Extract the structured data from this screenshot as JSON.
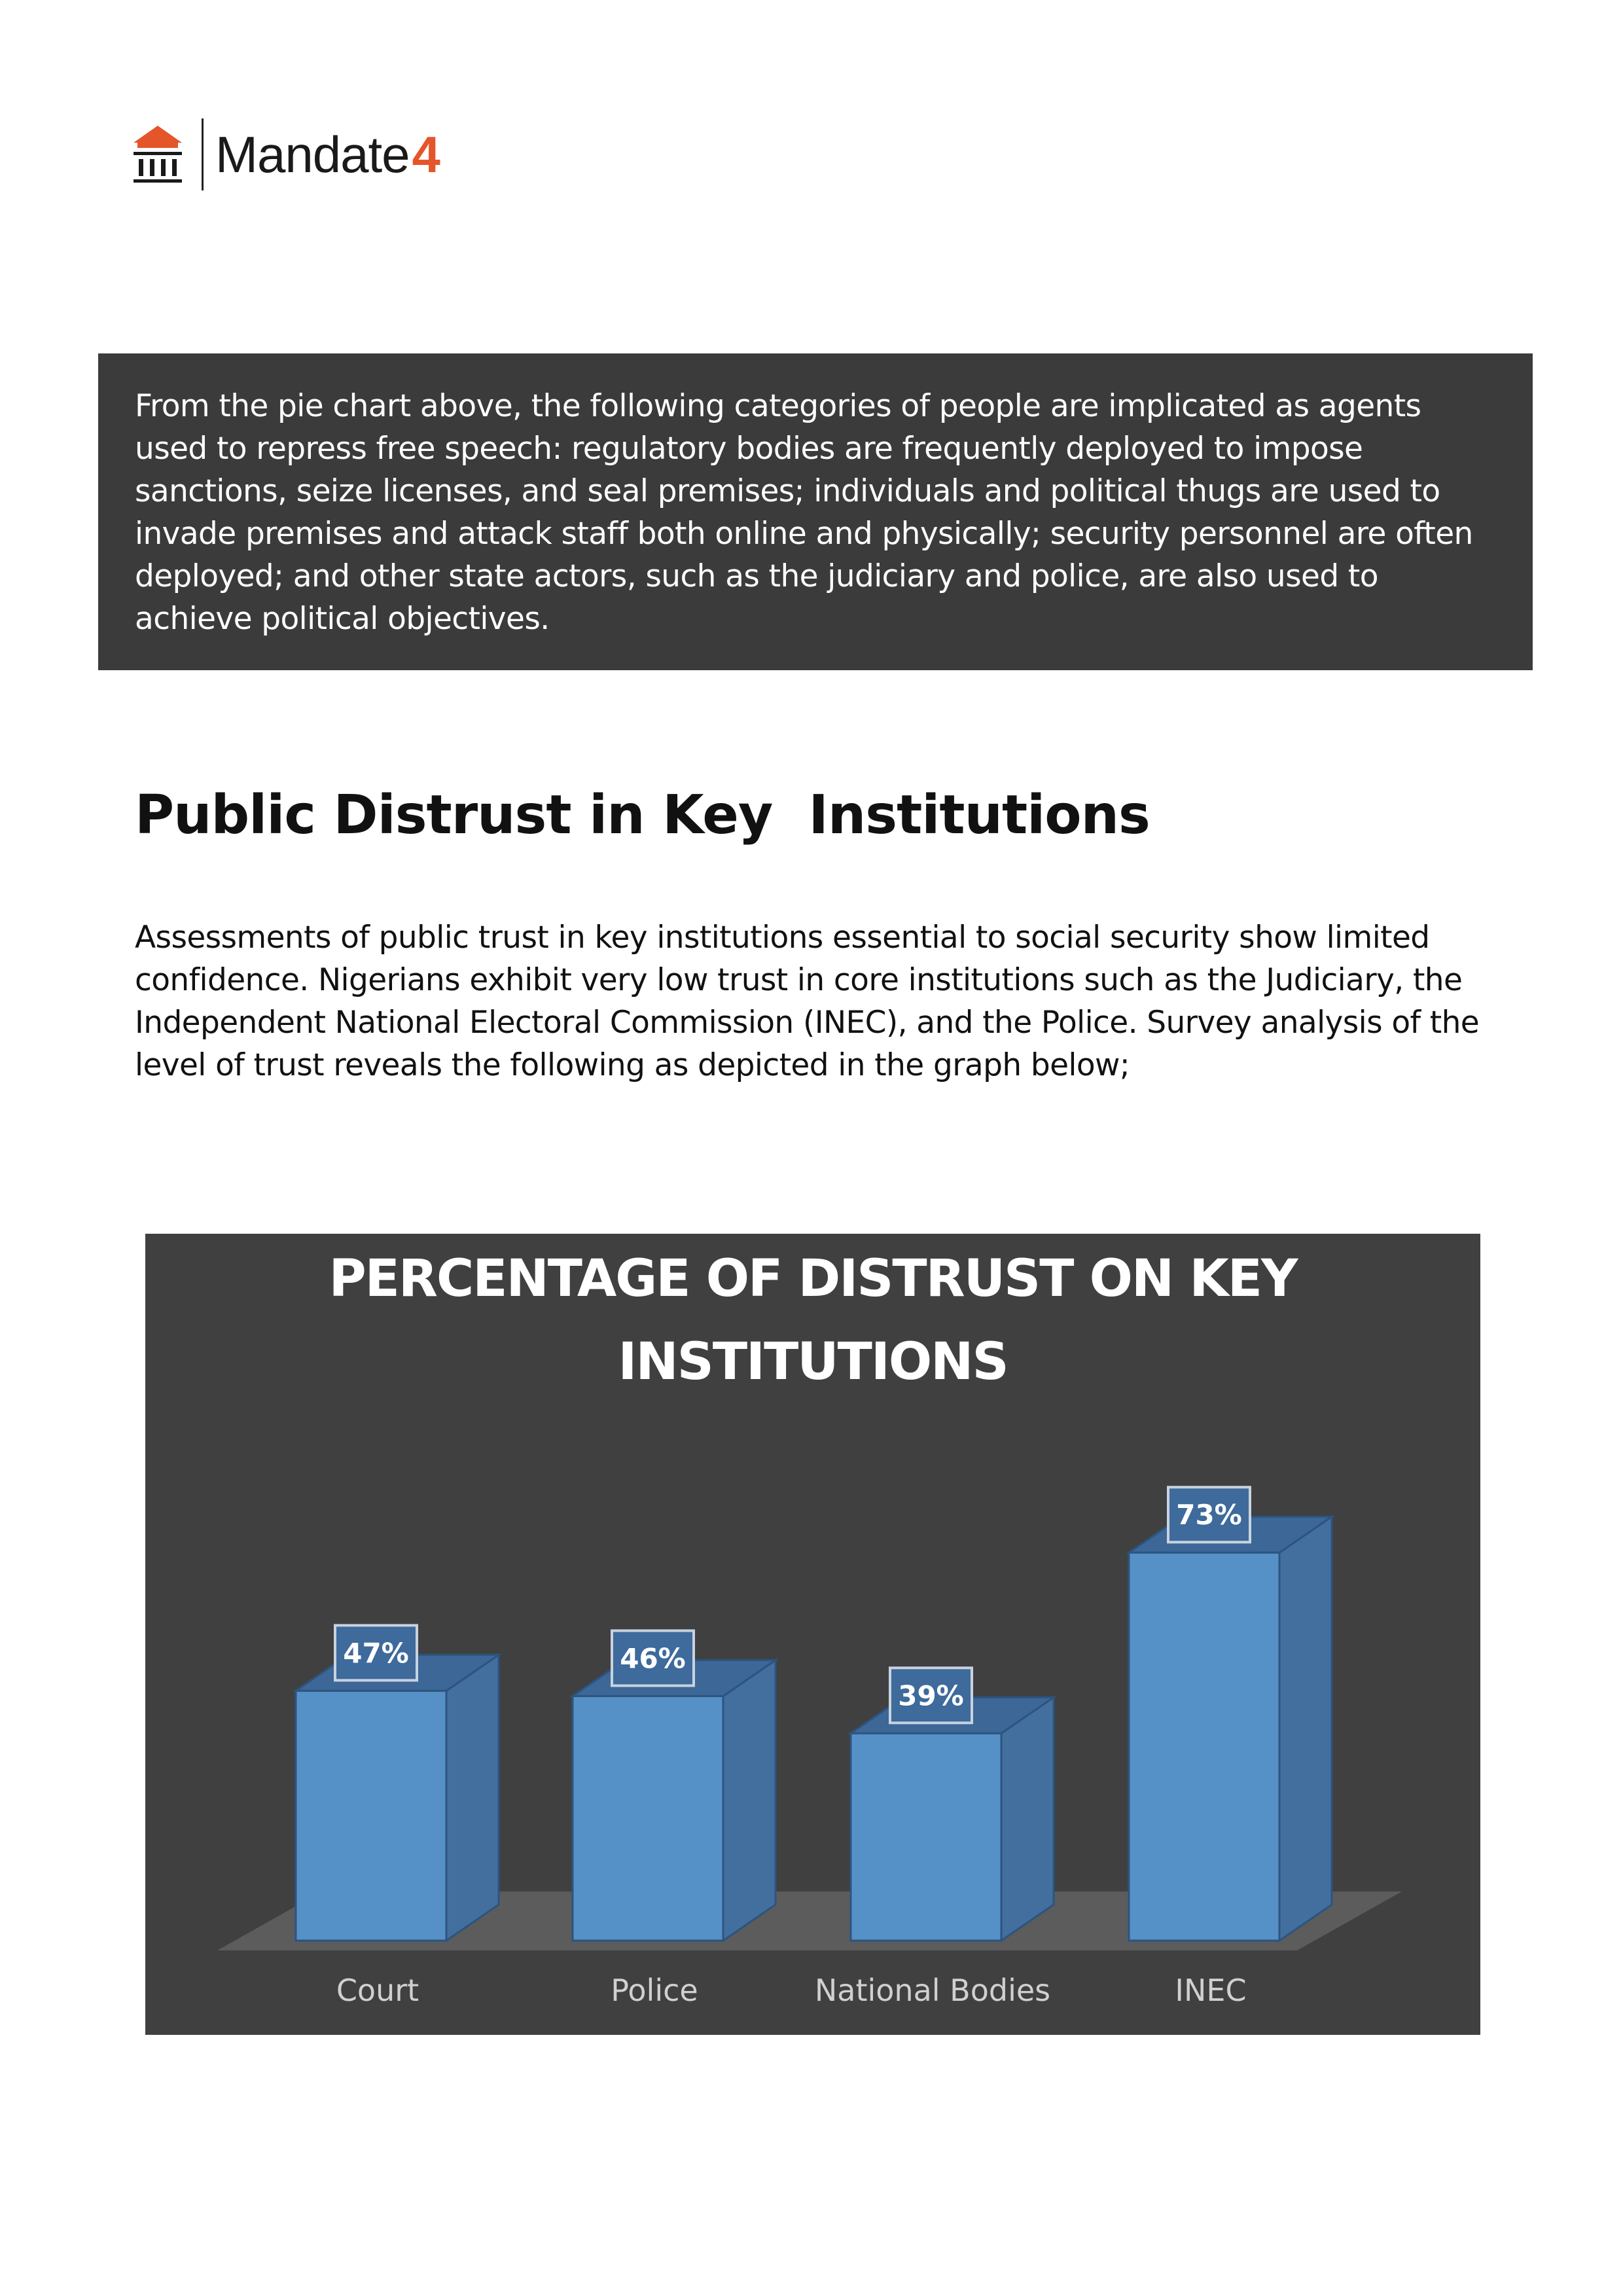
{
  "logo": {
    "icon": "institution-building-icon",
    "name": "Mandate",
    "number": "4",
    "brand_color": "#e4562a"
  },
  "callout": {
    "text": "From the pie chart above, the following categories of people are implicated as agents used to repress free speech: regulatory bodies are frequently deployed to impose sanctions, seize licenses, and seal premises; individuals and political thugs are used to invade premises and attack staff both online and physically; security personnel are often deployed; and other state actors, such as the judiciary and police, are also used to achieve political objectives.",
    "background": "#3b3b3b"
  },
  "section": {
    "heading": "Public Distrust in Key  Institutions",
    "body": "Assessments of public trust in key institutions essential to social security show limited confidence. Nigerians exhibit very low trust in core institutions such as the Judiciary, the Independent National Electoral Commission (INEC), and the Police. Survey analysis of the level of trust reveals the following as depicted in the graph below;"
  },
  "chart_data": {
    "type": "bar",
    "title_lines": [
      "PERCENTAGE OF DISTRUST ON KEY",
      "INSTITUTIONS"
    ],
    "categories": [
      "Court",
      "Police",
      "National Bodies",
      "INEC"
    ],
    "values": [
      47,
      46,
      39,
      73
    ],
    "data_labels": [
      "47%",
      "46%",
      "39%",
      "73%"
    ],
    "unit": "%",
    "style": "3d-column",
    "grid": false,
    "legend": "none",
    "colors": {
      "background": "#404040",
      "bar_front": "#5591c7",
      "bar_side": "#436f9e",
      "bar_top": "#3c6797",
      "floor": "#5c5c5c",
      "text": "#ffffff",
      "axis_label": "#d0d0d0"
    }
  }
}
